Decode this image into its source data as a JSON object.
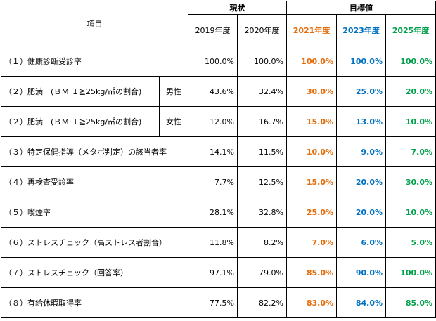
{
  "header": {
    "item": "項目",
    "current": "現状",
    "target": "目標値",
    "years": [
      "2019年度",
      "2020年度",
      "2021年度",
      "2023年度",
      "2025年度"
    ]
  },
  "colors": {
    "y2021": "#E46C0A",
    "y2023": "#0070C0",
    "y2025": "#00A04A"
  },
  "rows": [
    {
      "label": "（１）健康診断受診率",
      "sex": "",
      "v2019": "100.0%",
      "v2020": "100.0%",
      "t2021": "100.0%",
      "t2023": "100.0%",
      "t2025": "100.0%"
    },
    {
      "label": "（２）肥満　(ＢＭ Ｉ≧25kg/㎡の割合)",
      "sex": "男性",
      "v2019": "43.6%",
      "v2020": "32.4%",
      "t2021": "30.0%",
      "t2023": "25.0%",
      "t2025": "20.0%"
    },
    {
      "label": "（２）肥満　(ＢＭ Ｉ≧25kg/㎡の割合)",
      "sex": "女性",
      "v2019": "12.0%",
      "v2020": "16.7%",
      "t2021": "15.0%",
      "t2023": "13.0%",
      "t2025": "10.0%"
    },
    {
      "label": "（３）特定保健指導（メタボ判定）の該当者率",
      "sex": "",
      "v2019": "14.1%",
      "v2020": "11.5%",
      "t2021": "10.0%",
      "t2023": "9.0%",
      "t2025": "7.0%"
    },
    {
      "label": "（４）再検査受診率",
      "sex": "",
      "v2019": "7.7%",
      "v2020": "12.5%",
      "t2021": "15.0%",
      "t2023": "20.0%",
      "t2025": "30.0%"
    },
    {
      "label": "（５）喫煙率",
      "sex": "",
      "v2019": "28.1%",
      "v2020": "32.8%",
      "t2021": "25.0%",
      "t2023": "20.0%",
      "t2025": "10.0%"
    },
    {
      "label": "（６）ストレスチェック（高ストレス者割合）",
      "sex": "",
      "v2019": "11.8%",
      "v2020": "8.2%",
      "t2021": "7.0%",
      "t2023": "6.0%",
      "t2025": "5.0%"
    },
    {
      "label": "（７）ストレスチェック（回答率）",
      "sex": "",
      "v2019": "97.1%",
      "v2020": "79.0%",
      "t2021": "85.0%",
      "t2023": "90.0%",
      "t2025": "100.0%"
    },
    {
      "label": "（８）有給休暇取得率",
      "sex": "",
      "v2019": "77.5%",
      "v2020": "82.2%",
      "t2021": "83.0%",
      "t2023": "84.0%",
      "t2025": "85.0%"
    }
  ]
}
